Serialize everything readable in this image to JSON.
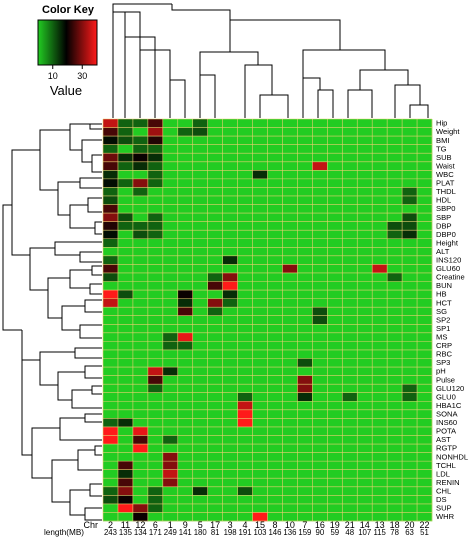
{
  "chart_data": {
    "type": "heatmap",
    "title": "",
    "color_key": {
      "title": "Color Key",
      "axis_label": "Value",
      "ticks": [
        "10",
        "30"
      ],
      "tick_values": [
        10,
        30
      ],
      "range": [
        0,
        40
      ],
      "colors": [
        "#22cc22",
        "#000000",
        "#ff1a1a"
      ]
    },
    "columns_label": "Chr",
    "columns": [
      "2",
      "11",
      "12",
      "6",
      "1",
      "9",
      "5",
      "17",
      "3",
      "4",
      "15",
      "8",
      "10",
      "7",
      "16",
      "19",
      "21",
      "14",
      "13",
      "18",
      "20",
      "22"
    ],
    "lengths_label": "length(MB)",
    "lengths": [
      243,
      135,
      134,
      171,
      249,
      141,
      180,
      81,
      198,
      191,
      103,
      146,
      136,
      159,
      90,
      59,
      48,
      107,
      115,
      78,
      63,
      51
    ],
    "rows": [
      "Hip",
      "Weight",
      "BMI",
      "TG",
      "SUB",
      "Waist",
      "WBC",
      "PLAT",
      "THDL",
      "HDL",
      "SBP0",
      "SBP",
      "DBP",
      "DBP0",
      "Height",
      "ALT",
      "INS120",
      "GLU60",
      "Creatine",
      "BUN",
      "HB",
      "HCT",
      "SG",
      "SP2",
      "SP1",
      "MS",
      "CRP",
      "RBC",
      "SP3",
      "pH",
      "Pulse",
      "GLU120",
      "GLU0",
      "HBA1C",
      "SONA",
      "INS60",
      "POTA",
      "AST",
      "RGTP",
      "NONHDL",
      "TCHL",
      "LDL",
      "RENIN",
      "CHL",
      "DS",
      "SUP",
      "WHR"
    ],
    "values": [
      [
        35,
        10,
        10,
        25,
        0,
        0,
        10,
        0,
        0,
        0,
        0,
        0,
        0,
        0,
        0,
        0,
        0,
        0,
        0,
        0,
        0,
        0
      ],
      [
        25,
        10,
        0,
        32,
        0,
        10,
        12,
        0,
        0,
        0,
        0,
        0,
        0,
        0,
        0,
        0,
        0,
        0,
        0,
        0,
        0,
        0
      ],
      [
        18,
        12,
        10,
        22,
        0,
        0,
        0,
        0,
        0,
        0,
        0,
        0,
        0,
        0,
        0,
        0,
        0,
        0,
        0,
        0,
        0,
        0
      ],
      [
        10,
        0,
        10,
        10,
        0,
        0,
        0,
        0,
        0,
        0,
        0,
        0,
        0,
        0,
        0,
        0,
        0,
        0,
        0,
        0,
        0,
        0
      ],
      [
        28,
        15,
        20,
        15,
        0,
        0,
        0,
        0,
        0,
        0,
        0,
        0,
        0,
        0,
        0,
        0,
        0,
        0,
        0,
        0,
        0,
        0
      ],
      [
        25,
        10,
        15,
        10,
        0,
        0,
        0,
        0,
        0,
        0,
        0,
        0,
        0,
        0,
        35,
        0,
        0,
        0,
        0,
        0,
        0,
        0
      ],
      [
        15,
        0,
        0,
        10,
        0,
        0,
        0,
        0,
        0,
        0,
        15,
        0,
        0,
        0,
        0,
        0,
        0,
        0,
        0,
        0,
        0,
        0
      ],
      [
        18,
        10,
        30,
        10,
        0,
        0,
        0,
        0,
        0,
        0,
        0,
        0,
        0,
        0,
        0,
        0,
        0,
        0,
        0,
        0,
        0,
        0
      ],
      [
        10,
        0,
        10,
        0,
        0,
        0,
        0,
        0,
        0,
        0,
        0,
        0,
        0,
        0,
        0,
        0,
        0,
        0,
        0,
        0,
        10,
        0
      ],
      [
        12,
        0,
        0,
        0,
        0,
        0,
        0,
        0,
        0,
        0,
        0,
        0,
        0,
        0,
        0,
        0,
        0,
        0,
        0,
        0,
        10,
        0
      ],
      [
        25,
        0,
        0,
        0,
        0,
        0,
        0,
        0,
        0,
        0,
        0,
        0,
        0,
        0,
        0,
        0,
        0,
        0,
        0,
        0,
        0,
        0
      ],
      [
        30,
        12,
        0,
        10,
        0,
        0,
        0,
        0,
        0,
        0,
        0,
        0,
        0,
        0,
        0,
        0,
        0,
        0,
        0,
        0,
        12,
        0
      ],
      [
        22,
        10,
        10,
        10,
        0,
        0,
        0,
        0,
        0,
        0,
        0,
        0,
        0,
        0,
        0,
        0,
        0,
        0,
        0,
        12,
        12,
        0
      ],
      [
        18,
        0,
        12,
        10,
        0,
        0,
        0,
        0,
        0,
        0,
        0,
        0,
        0,
        0,
        0,
        0,
        0,
        0,
        0,
        10,
        15,
        0
      ],
      [
        10,
        0,
        0,
        0,
        0,
        0,
        0,
        0,
        0,
        0,
        0,
        0,
        0,
        0,
        0,
        0,
        0,
        0,
        0,
        0,
        0,
        0
      ],
      [
        0,
        0,
        0,
        0,
        0,
        0,
        0,
        0,
        0,
        0,
        0,
        0,
        0,
        0,
        0,
        0,
        0,
        0,
        0,
        0,
        0,
        0
      ],
      [
        10,
        0,
        0,
        0,
        0,
        0,
        0,
        0,
        15,
        0,
        0,
        0,
        0,
        0,
        0,
        0,
        0,
        0,
        0,
        0,
        0,
        0
      ],
      [
        25,
        0,
        0,
        0,
        0,
        0,
        0,
        0,
        0,
        0,
        0,
        0,
        30,
        0,
        0,
        0,
        0,
        0,
        35,
        0,
        0,
        0
      ],
      [
        12,
        0,
        0,
        0,
        0,
        0,
        0,
        10,
        30,
        0,
        0,
        0,
        0,
        0,
        0,
        0,
        0,
        0,
        0,
        10,
        0,
        0
      ],
      [
        0,
        0,
        0,
        0,
        0,
        0,
        0,
        25,
        40,
        0,
        0,
        0,
        0,
        0,
        0,
        0,
        0,
        0,
        0,
        0,
        0,
        0
      ],
      [
        40,
        12,
        0,
        0,
        0,
        20,
        0,
        0,
        15,
        0,
        0,
        0,
        0,
        0,
        0,
        0,
        0,
        0,
        0,
        0,
        0,
        0
      ],
      [
        35,
        0,
        0,
        0,
        0,
        15,
        0,
        30,
        10,
        0,
        0,
        0,
        0,
        0,
        0,
        0,
        0,
        0,
        0,
        0,
        0,
        0
      ],
      [
        0,
        0,
        0,
        0,
        0,
        25,
        0,
        10,
        0,
        0,
        0,
        0,
        0,
        0,
        12,
        0,
        0,
        0,
        0,
        0,
        0,
        0
      ],
      [
        0,
        0,
        0,
        0,
        0,
        0,
        0,
        0,
        0,
        0,
        0,
        0,
        0,
        0,
        12,
        0,
        0,
        0,
        0,
        0,
        0,
        0
      ],
      [
        0,
        0,
        0,
        0,
        0,
        0,
        0,
        0,
        0,
        0,
        0,
        0,
        0,
        0,
        0,
        0,
        0,
        0,
        0,
        0,
        0,
        0
      ],
      [
        0,
        0,
        0,
        0,
        10,
        38,
        0,
        0,
        0,
        0,
        0,
        0,
        0,
        0,
        0,
        0,
        0,
        0,
        0,
        0,
        0,
        0
      ],
      [
        0,
        0,
        0,
        0,
        10,
        10,
        0,
        0,
        0,
        0,
        0,
        0,
        0,
        0,
        0,
        0,
        0,
        0,
        0,
        0,
        0,
        0
      ],
      [
        0,
        0,
        0,
        0,
        0,
        0,
        0,
        0,
        0,
        0,
        0,
        0,
        0,
        0,
        0,
        0,
        0,
        0,
        0,
        0,
        0,
        0
      ],
      [
        0,
        0,
        0,
        0,
        0,
        0,
        0,
        0,
        0,
        0,
        0,
        0,
        0,
        12,
        0,
        0,
        0,
        0,
        0,
        0,
        0,
        0
      ],
      [
        0,
        0,
        0,
        35,
        15,
        0,
        0,
        0,
        0,
        0,
        0,
        0,
        0,
        0,
        0,
        0,
        0,
        0,
        0,
        0,
        0,
        0
      ],
      [
        0,
        0,
        0,
        25,
        0,
        0,
        0,
        0,
        0,
        0,
        0,
        0,
        0,
        30,
        0,
        0,
        0,
        0,
        0,
        0,
        0,
        0
      ],
      [
        0,
        0,
        0,
        10,
        0,
        0,
        0,
        0,
        0,
        0,
        0,
        0,
        0,
        30,
        0,
        0,
        0,
        0,
        0,
        0,
        10,
        0
      ],
      [
        0,
        0,
        0,
        0,
        0,
        0,
        0,
        0,
        0,
        10,
        0,
        0,
        0,
        15,
        0,
        0,
        10,
        0,
        0,
        0,
        10,
        0
      ],
      [
        0,
        0,
        0,
        0,
        0,
        0,
        0,
        0,
        0,
        35,
        0,
        0,
        0,
        0,
        0,
        0,
        0,
        0,
        0,
        0,
        0,
        0
      ],
      [
        0,
        0,
        0,
        0,
        0,
        0,
        0,
        0,
        0,
        40,
        0,
        0,
        0,
        0,
        0,
        0,
        0,
        0,
        0,
        0,
        0,
        0
      ],
      [
        10,
        15,
        0,
        0,
        0,
        0,
        0,
        0,
        0,
        40,
        0,
        0,
        0,
        0,
        0,
        0,
        0,
        0,
        0,
        0,
        0,
        0
      ],
      [
        40,
        0,
        38,
        0,
        0,
        0,
        0,
        0,
        0,
        0,
        0,
        0,
        0,
        0,
        0,
        0,
        0,
        0,
        0,
        0,
        0,
        0
      ],
      [
        45,
        0,
        25,
        0,
        10,
        0,
        0,
        0,
        0,
        0,
        0,
        0,
        0,
        0,
        0,
        0,
        0,
        0,
        0,
        0,
        0,
        0
      ],
      [
        0,
        0,
        40,
        0,
        0,
        0,
        0,
        0,
        0,
        0,
        0,
        0,
        0,
        0,
        0,
        0,
        0,
        0,
        0,
        0,
        0,
        0
      ],
      [
        0,
        0,
        0,
        0,
        30,
        0,
        0,
        0,
        0,
        0,
        0,
        0,
        0,
        0,
        0,
        0,
        0,
        0,
        0,
        0,
        0,
        0
      ],
      [
        0,
        25,
        0,
        0,
        30,
        0,
        0,
        0,
        0,
        0,
        0,
        0,
        0,
        0,
        0,
        0,
        0,
        0,
        0,
        0,
        0,
        0
      ],
      [
        0,
        15,
        0,
        0,
        35,
        0,
        0,
        0,
        0,
        0,
        0,
        0,
        0,
        0,
        0,
        0,
        0,
        0,
        0,
        0,
        0,
        0
      ],
      [
        0,
        25,
        0,
        0,
        30,
        0,
        0,
        0,
        0,
        0,
        0,
        0,
        0,
        0,
        0,
        0,
        0,
        0,
        0,
        0,
        0,
        0
      ],
      [
        10,
        30,
        0,
        10,
        0,
        0,
        15,
        0,
        0,
        12,
        0,
        0,
        0,
        0,
        0,
        0,
        0,
        0,
        0,
        0,
        0,
        0
      ],
      [
        12,
        20,
        0,
        10,
        0,
        0,
        0,
        0,
        0,
        0,
        0,
        0,
        0,
        0,
        0,
        0,
        0,
        0,
        0,
        0,
        0,
        0
      ],
      [
        0,
        40,
        30,
        10,
        0,
        0,
        0,
        0,
        0,
        0,
        0,
        0,
        0,
        0,
        0,
        0,
        0,
        0,
        0,
        0,
        0,
        0
      ],
      [
        0,
        0,
        20,
        0,
        0,
        0,
        0,
        0,
        0,
        0,
        40,
        0,
        0,
        0,
        0,
        0,
        0,
        0,
        0,
        0,
        0,
        0
      ]
    ]
  }
}
